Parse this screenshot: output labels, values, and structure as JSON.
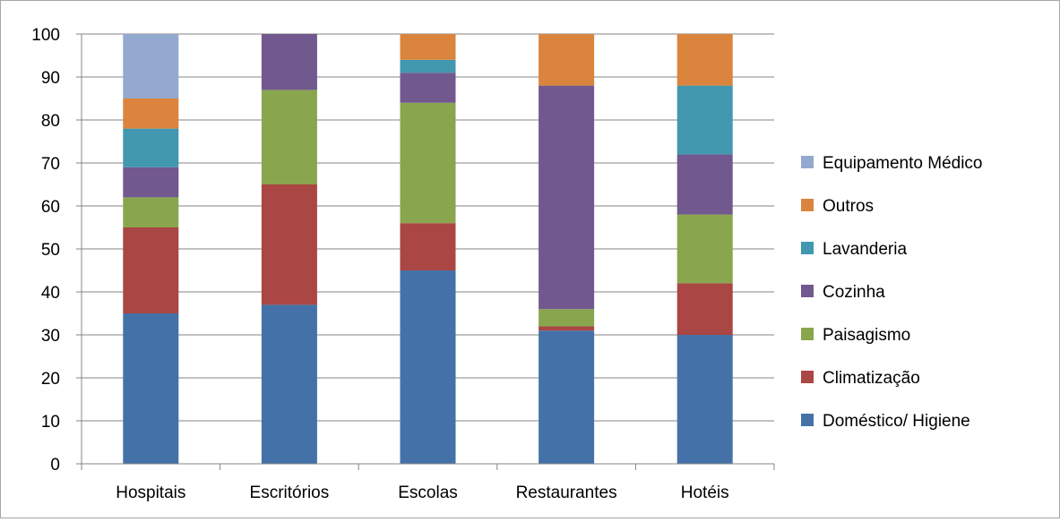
{
  "chart_data": {
    "type": "bar",
    "stacked": true,
    "categories": [
      "Hospitais",
      "Escritórios",
      "Escolas",
      "Restaurantes",
      "Hotéis"
    ],
    "series": [
      {
        "name": "Doméstico/ Higiene",
        "color": "#4472a8",
        "values": [
          35,
          37,
          45,
          31,
          30
        ]
      },
      {
        "name": "Climatização",
        "color": "#aa4643",
        "values": [
          20,
          28,
          11,
          1,
          12
        ]
      },
      {
        "name": "Paisagismo",
        "color": "#89a54e",
        "values": [
          7,
          22,
          28,
          4,
          16
        ]
      },
      {
        "name": "Cozinha",
        "color": "#71588f",
        "values": [
          7,
          13,
          7,
          52,
          14
        ]
      },
      {
        "name": "Lavanderia",
        "color": "#4198af",
        "values": [
          9,
          0,
          3,
          0,
          16
        ]
      },
      {
        "name": "Outros",
        "color": "#db843d",
        "values": [
          7,
          0,
          6,
          12,
          12
        ]
      },
      {
        "name": "Equipamento Médico",
        "color": "#93a9cf",
        "values": [
          15,
          0,
          0,
          0,
          0
        ]
      }
    ],
    "ylim": [
      0,
      100
    ],
    "yticks": [
      "0",
      "10",
      "20",
      "30",
      "40",
      "50",
      "60",
      "70",
      "80",
      "90",
      "100"
    ],
    "grid": true,
    "legend_position": "right"
  }
}
